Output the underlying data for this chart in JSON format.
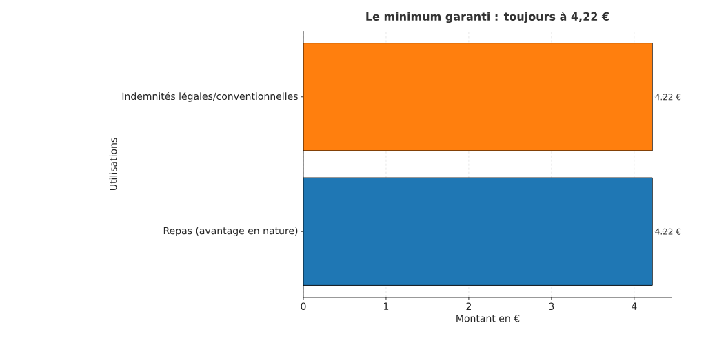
{
  "chart_data": {
    "type": "bar",
    "orientation": "horizontal",
    "title": "Le minimum garanti : toujours à 4,22 €",
    "xlabel": "Montant en €",
    "ylabel": "Utilisations",
    "categories": [
      "Indemnités légales/conventionnelles",
      "Repas (avantage en nature)"
    ],
    "values": [
      4.22,
      4.22
    ],
    "colors": [
      "#ff7f0e",
      "#1f77b4"
    ],
    "value_labels": [
      "4.22 €",
      "4.22 €"
    ],
    "xlim": [
      0,
      4.46
    ],
    "xticks": [
      0,
      1,
      2,
      3,
      4
    ],
    "grid": true
  }
}
